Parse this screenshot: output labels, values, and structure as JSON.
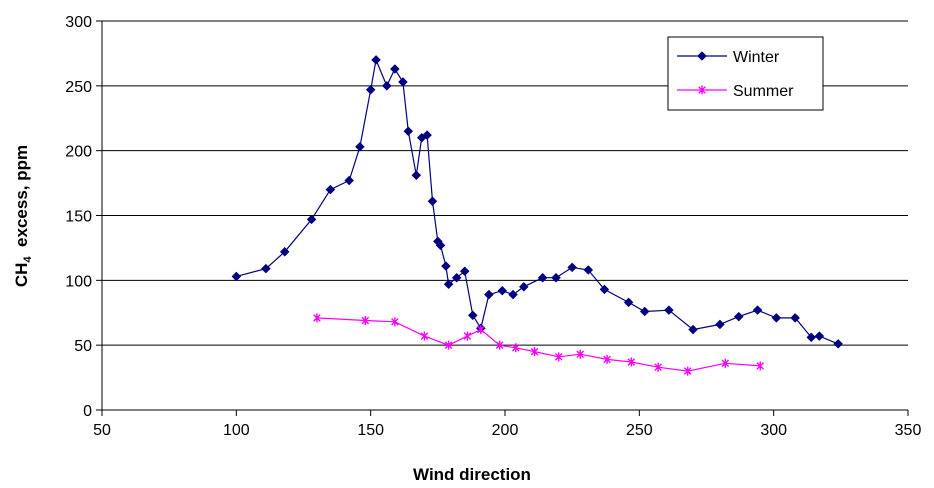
{
  "chart_data": {
    "type": "line",
    "title": "",
    "xlabel": "Wind direction",
    "ylabel_main": "CH",
    "ylabel_sub": "4",
    "ylabel_rest": "  excess, ppm",
    "xlim": [
      50,
      350
    ],
    "ylim": [
      0,
      300
    ],
    "x_ticks": [
      50,
      100,
      150,
      200,
      250,
      300,
      350
    ],
    "y_ticks": [
      0,
      50,
      100,
      150,
      200,
      250,
      300
    ],
    "grid": "horizontal",
    "legend_position": "top-right",
    "series": [
      {
        "name": "Winter",
        "color": "#000080",
        "marker": "diamond",
        "points": [
          [
            100,
            103
          ],
          [
            111,
            109
          ],
          [
            118,
            122
          ],
          [
            128,
            147
          ],
          [
            135,
            170
          ],
          [
            142,
            177
          ],
          [
            146,
            203
          ],
          [
            150,
            247
          ],
          [
            152,
            270
          ],
          [
            156,
            250
          ],
          [
            159,
            263
          ],
          [
            162,
            253
          ],
          [
            164,
            215
          ],
          [
            167,
            181
          ],
          [
            169,
            210
          ],
          [
            171,
            212
          ],
          [
            173,
            161
          ],
          [
            175,
            130
          ],
          [
            176,
            127
          ],
          [
            178,
            111
          ],
          [
            179,
            97
          ],
          [
            182,
            102
          ],
          [
            185,
            107
          ],
          [
            188,
            73
          ],
          [
            191,
            63
          ],
          [
            194,
            89
          ],
          [
            199,
            92
          ],
          [
            203,
            89
          ],
          [
            207,
            95
          ],
          [
            214,
            102
          ],
          [
            219,
            102
          ],
          [
            225,
            110
          ],
          [
            231,
            108
          ],
          [
            237,
            93
          ],
          [
            246,
            83
          ],
          [
            252,
            76
          ],
          [
            261,
            77
          ],
          [
            270,
            62
          ],
          [
            280,
            66
          ],
          [
            287,
            72
          ],
          [
            294,
            77
          ],
          [
            301,
            71
          ],
          [
            308,
            71
          ],
          [
            314,
            56
          ],
          [
            317,
            57
          ],
          [
            324,
            51
          ]
        ]
      },
      {
        "name": "Summer",
        "color": "#ff00ff",
        "marker": "asterisk",
        "points": [
          [
            130,
            71
          ],
          [
            148,
            69
          ],
          [
            159,
            68
          ],
          [
            170,
            57
          ],
          [
            179,
            50
          ],
          [
            186,
            57
          ],
          [
            191,
            62
          ],
          [
            198,
            50
          ],
          [
            204,
            48
          ],
          [
            211,
            45
          ],
          [
            220,
            41
          ],
          [
            228,
            43
          ],
          [
            238,
            39
          ],
          [
            247,
            37
          ],
          [
            257,
            33
          ],
          [
            268,
            30
          ],
          [
            282,
            36
          ],
          [
            295,
            34
          ]
        ]
      }
    ]
  }
}
